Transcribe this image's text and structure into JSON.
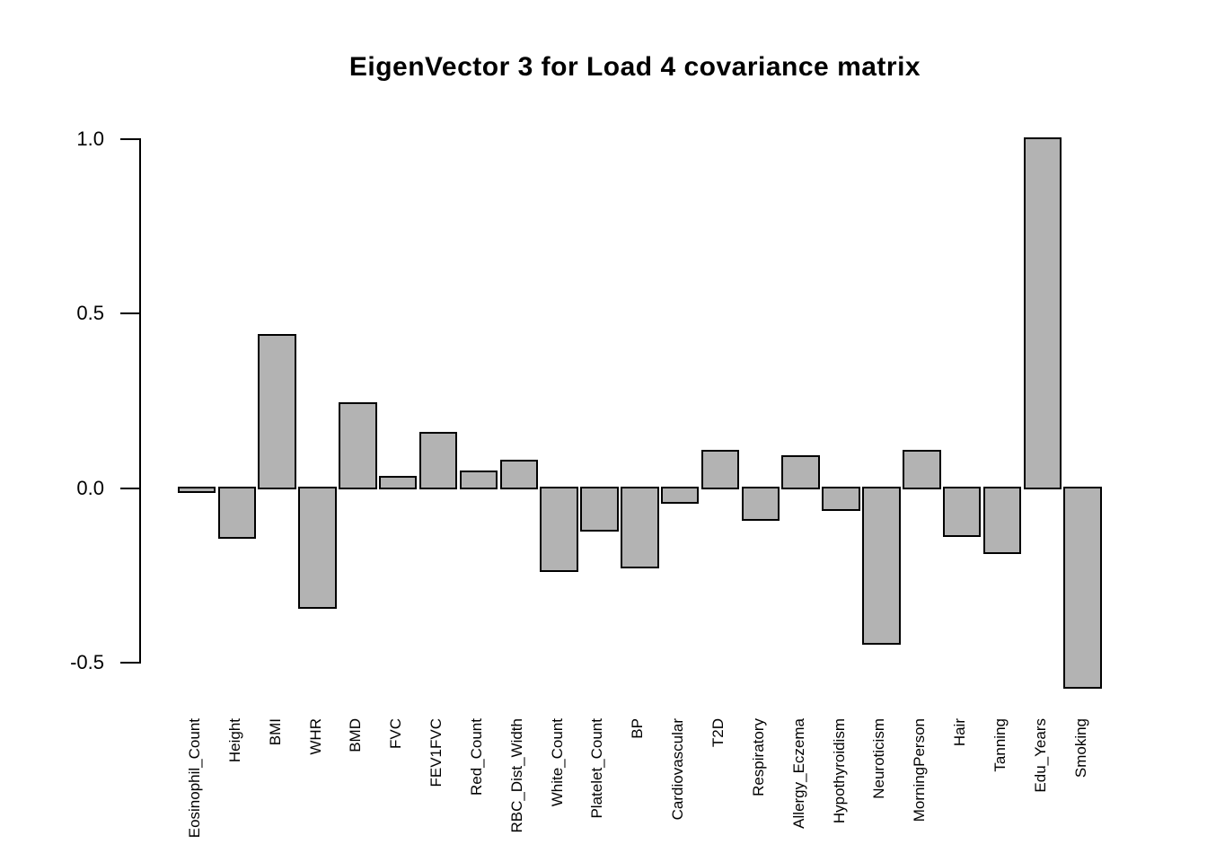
{
  "chart_data": {
    "type": "bar",
    "title": "EigenVector 3 for Load 4 covariance matrix",
    "xlabel": "",
    "ylabel": "",
    "ylim": [
      -0.5,
      1.0
    ],
    "grid": false,
    "legend": false,
    "bar_fill_color": "#b3b3b3",
    "bar_border_color": "#000000",
    "axis_color": "#000000",
    "yticks": [
      {
        "value": 1.0,
        "label": "1.0"
      },
      {
        "value": 0.5,
        "label": "0.5"
      },
      {
        "value": 0.0,
        "label": "0.0"
      },
      {
        "value": -0.5,
        "label": "-0.5"
      }
    ],
    "categories": [
      "Eosinophil_Count",
      "Height",
      "BMI",
      "WHR",
      "BMD",
      "FVC",
      "FEV1FVC",
      "Red_Count",
      "RBC_Dist_Width",
      "White_Count",
      "Platelet_Count",
      "BP",
      "Cardiovascular",
      "T2D",
      "Respiratory",
      "Allergy_Eczema",
      "Hypothyroidism",
      "Neuroticism",
      "MorningPerson",
      "Hair",
      "Tanning",
      "Edu_Years",
      "Smoking"
    ],
    "values": [
      -0.01,
      -0.14,
      0.435,
      -0.34,
      0.24,
      0.03,
      0.155,
      0.045,
      0.075,
      -0.235,
      -0.12,
      -0.225,
      -0.04,
      0.105,
      -0.09,
      0.09,
      -0.06,
      -0.445,
      0.105,
      -0.135,
      -0.185,
      1.0,
      -0.57
    ]
  }
}
